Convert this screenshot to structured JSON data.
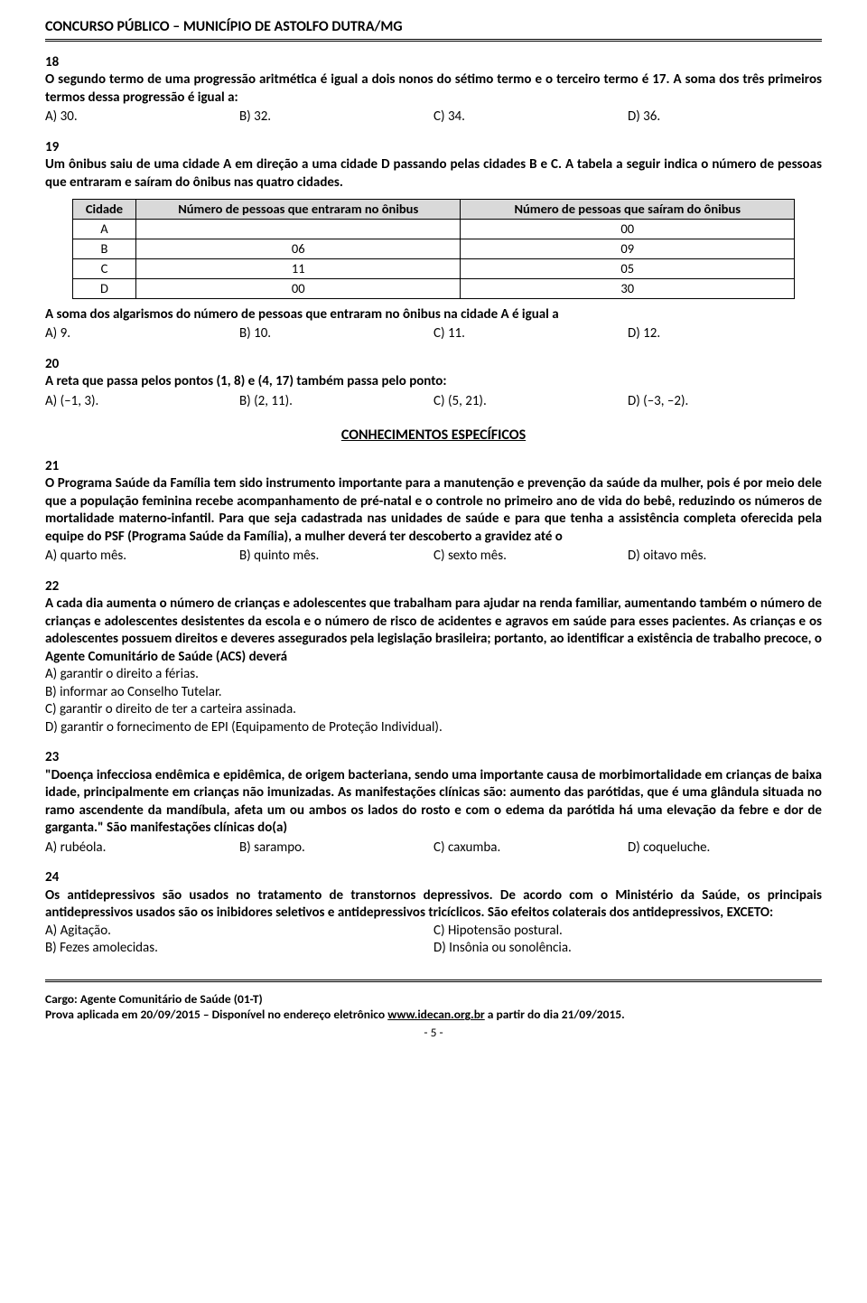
{
  "header": {
    "title": "CONCURSO PÚBLICO – MUNICÍPIO DE ASTOLFO DUTRA/MG"
  },
  "q18": {
    "num": "18",
    "text": "O segundo termo de uma progressão aritmética é igual a dois nonos do sétimo termo e o terceiro termo é 17. A soma dos três primeiros termos dessa progressão é igual a:",
    "a": "A) 30.",
    "b": "B) 32.",
    "c": "C) 34.",
    "d": "D) 36."
  },
  "q19": {
    "num": "19",
    "text": "Um ônibus saiu de uma cidade A em direção a uma cidade D passando pelas cidades B e C. A tabela a seguir indica o número de pessoas que entraram e saíram do ônibus nas quatro cidades.",
    "table": {
      "h1": "Cidade",
      "h2": "Número de pessoas que entraram no ônibus",
      "h3": "Número de pessoas que saíram do ônibus",
      "rows": [
        {
          "c": "A",
          "in": "",
          "out": "00"
        },
        {
          "c": "B",
          "in": "06",
          "out": "09"
        },
        {
          "c": "C",
          "in": "11",
          "out": "05"
        },
        {
          "c": "D",
          "in": "00",
          "out": "30"
        }
      ]
    },
    "text2": "A soma dos algarismos do número de pessoas que entraram no ônibus na cidade A é igual a",
    "a": "A) 9.",
    "b": "B) 10.",
    "c": "C) 11.",
    "d": "D) 12."
  },
  "q20": {
    "num": "20",
    "text": "A reta que passa pelos pontos (1, 8) e (4, 17) também passa pelo ponto:",
    "a": "A) (–1, 3).",
    "b": "B) (2, 11).",
    "c": "C) (5, 21).",
    "d": "D) (–3, –2)."
  },
  "section": "CONHECIMENTOS ESPECÍFICOS",
  "q21": {
    "num": "21",
    "text": "O Programa Saúde da Família tem sido instrumento importante para a manutenção e prevenção da saúde da mulher, pois é por meio dele que a população feminina recebe acompanhamento de pré-natal e o controle no primeiro ano de vida do bebê, reduzindo os números de mortalidade materno-infantil. Para que seja cadastrada nas unidades de saúde e para que tenha a assistência completa oferecida pela equipe do PSF (Programa Saúde da Família), a mulher deverá ter descoberto a gravidez até o",
    "a": "A) quarto mês.",
    "b": "B) quinto mês.",
    "c": "C) sexto mês.",
    "d": "D) oitavo mês."
  },
  "q22": {
    "num": "22",
    "text": " A cada dia aumenta o número de crianças e adolescentes que trabalham para ajudar na renda familiar, aumentando também o número de crianças e adolescentes desistentes da escola e o número de risco de acidentes e agravos em saúde para esses pacientes. As crianças e os adolescentes possuem direitos e deveres assegurados pela legislação brasileira; portanto, ao identificar a existência de trabalho precoce, o Agente Comunitário de Saúde (ACS) deverá",
    "a": "A) garantir o direito a férias.",
    "b": "B) informar ao Conselho Tutelar.",
    "c": "C) garantir o direito de ter a carteira assinada.",
    "d": "D) garantir o fornecimento de EPI (Equipamento de Proteção Individual)."
  },
  "q23": {
    "num": "23",
    "text": "\"Doença infecciosa endêmica e epidêmica, de origem bacteriana, sendo uma importante causa de morbimortalidade em crianças de baixa idade, principalmente em crianças não imunizadas. As manifestações clínicas são: aumento das parótidas, que é uma glândula situada no ramo ascendente da mandíbula, afeta um ou ambos os lados do rosto e com o edema da parótida há uma elevação da febre e dor de garganta.\" São manifestações clínicas do(a)",
    "a": "A) rubéola.",
    "b": "B) sarampo.",
    "c": "C) caxumba.",
    "d": "D) coqueluche."
  },
  "q24": {
    "num": "24",
    "text": "Os antidepressivos são usados no tratamento de transtornos depressivos. De acordo com o Ministério da Saúde, os principais antidepressivos usados são os inibidores seletivos e antidepressivos tricíclicos. São efeitos colaterais dos antidepressivos, EXCETO:",
    "a": "A) Agitação.",
    "b": "B) Fezes amolecidas.",
    "c": "C) Hipotensão postural.",
    "d": "D) Insônia ou sonolência."
  },
  "footer": {
    "cargo": "Cargo: Agente Comunitário de Saúde (01-T)",
    "prova_pre": "Prova aplicada em 20/09/2015 – Disponível no endereço eletrônico ",
    "link": "www.idecan.org.br",
    "prova_post": " a partir do dia 21/09/2015.",
    "page": "- 5 -"
  }
}
